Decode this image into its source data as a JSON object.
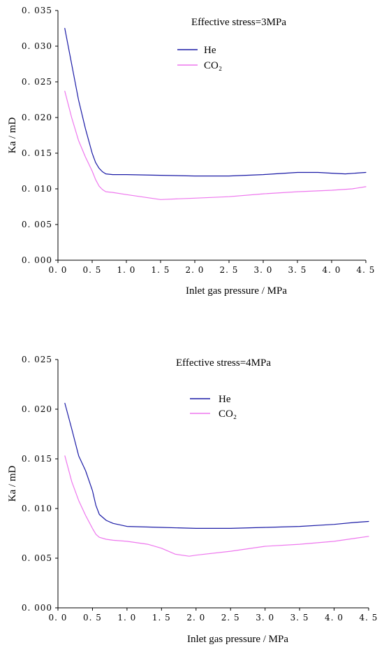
{
  "chart_data": [
    {
      "type": "line",
      "title": "Effective stress=3MPa",
      "xlabel": "Inlet gas pressure / MPa",
      "ylabel": "Ka / mD",
      "xlim": [
        0,
        4.5
      ],
      "ylim": [
        0,
        0.035
      ],
      "xticks": [
        "0. 0",
        "0. 5",
        "1. 0",
        "1. 5",
        "2. 0",
        "2. 5",
        "3. 0",
        "3. 5",
        "4. 0",
        "4. 5"
      ],
      "yticks": [
        "0. 000",
        "0. 005",
        "0. 010",
        "0. 015",
        "0. 020",
        "0. 025",
        "0. 030",
        "0. 035"
      ],
      "legend_position": "top-center",
      "series": [
        {
          "name": "He",
          "color": "#1a1aa6",
          "x": [
            0.1,
            0.2,
            0.3,
            0.4,
            0.5,
            0.55,
            0.6,
            0.65,
            0.7,
            0.8,
            1.0,
            1.5,
            2.0,
            2.5,
            3.0,
            3.5,
            3.8,
            4.0,
            4.2,
            4.5
          ],
          "y": [
            0.0325,
            0.0275,
            0.0225,
            0.0185,
            0.015,
            0.0137,
            0.0129,
            0.0124,
            0.0121,
            0.012,
            0.012,
            0.0119,
            0.0118,
            0.0118,
            0.012,
            0.0123,
            0.0123,
            0.0122,
            0.0121,
            0.0123
          ]
        },
        {
          "name": "CO₂",
          "color": "#ee77ee",
          "x": [
            0.1,
            0.2,
            0.3,
            0.4,
            0.5,
            0.55,
            0.6,
            0.65,
            0.7,
            0.8,
            1.0,
            1.5,
            2.0,
            2.5,
            3.0,
            3.5,
            4.0,
            4.3,
            4.5
          ],
          "y": [
            0.0237,
            0.02,
            0.0168,
            0.0145,
            0.0125,
            0.0113,
            0.0104,
            0.0099,
            0.0096,
            0.0095,
            0.0092,
            0.0085,
            0.0087,
            0.0089,
            0.0093,
            0.0096,
            0.0098,
            0.01,
            0.0103
          ]
        }
      ]
    },
    {
      "type": "line",
      "title": "Effective stress=4MPa",
      "xlabel": "Inlet gas pressure / MPa",
      "ylabel": "Ka / mD",
      "xlim": [
        0,
        4.5
      ],
      "ylim": [
        0,
        0.025
      ],
      "xticks": [
        "0. 0",
        "0. 5",
        "1. 0",
        "1. 5",
        "2. 0",
        "2. 5",
        "3. 0",
        "3. 5",
        "4. 0",
        "4. 5"
      ],
      "yticks": [
        "0. 000",
        "0. 005",
        "0. 010",
        "0. 015",
        "0. 020",
        "0. 025"
      ],
      "legend_position": "top-center",
      "series": [
        {
          "name": "He",
          "color": "#1a1aa6",
          "x": [
            0.1,
            0.2,
            0.3,
            0.4,
            0.5,
            0.55,
            0.6,
            0.7,
            0.8,
            1.0,
            1.5,
            2.0,
            2.5,
            3.0,
            3.5,
            4.0,
            4.3,
            4.5
          ],
          "y": [
            0.0206,
            0.018,
            0.0153,
            0.0138,
            0.0118,
            0.0103,
            0.0094,
            0.0088,
            0.0085,
            0.0082,
            0.0081,
            0.008,
            0.008,
            0.0081,
            0.0082,
            0.0084,
            0.0086,
            0.0087
          ]
        },
        {
          "name": "CO₂",
          "color": "#ee77ee",
          "x": [
            0.1,
            0.2,
            0.3,
            0.4,
            0.5,
            0.55,
            0.6,
            0.7,
            0.8,
            1.0,
            1.3,
            1.5,
            1.7,
            1.9,
            2.0,
            2.5,
            3.0,
            3.5,
            4.0,
            4.3,
            4.5
          ],
          "y": [
            0.0153,
            0.0127,
            0.0108,
            0.0093,
            0.008,
            0.0074,
            0.0071,
            0.0069,
            0.0068,
            0.0067,
            0.0064,
            0.006,
            0.0054,
            0.0052,
            0.0053,
            0.0057,
            0.0062,
            0.0064,
            0.0067,
            0.007,
            0.0072
          ]
        }
      ]
    }
  ]
}
